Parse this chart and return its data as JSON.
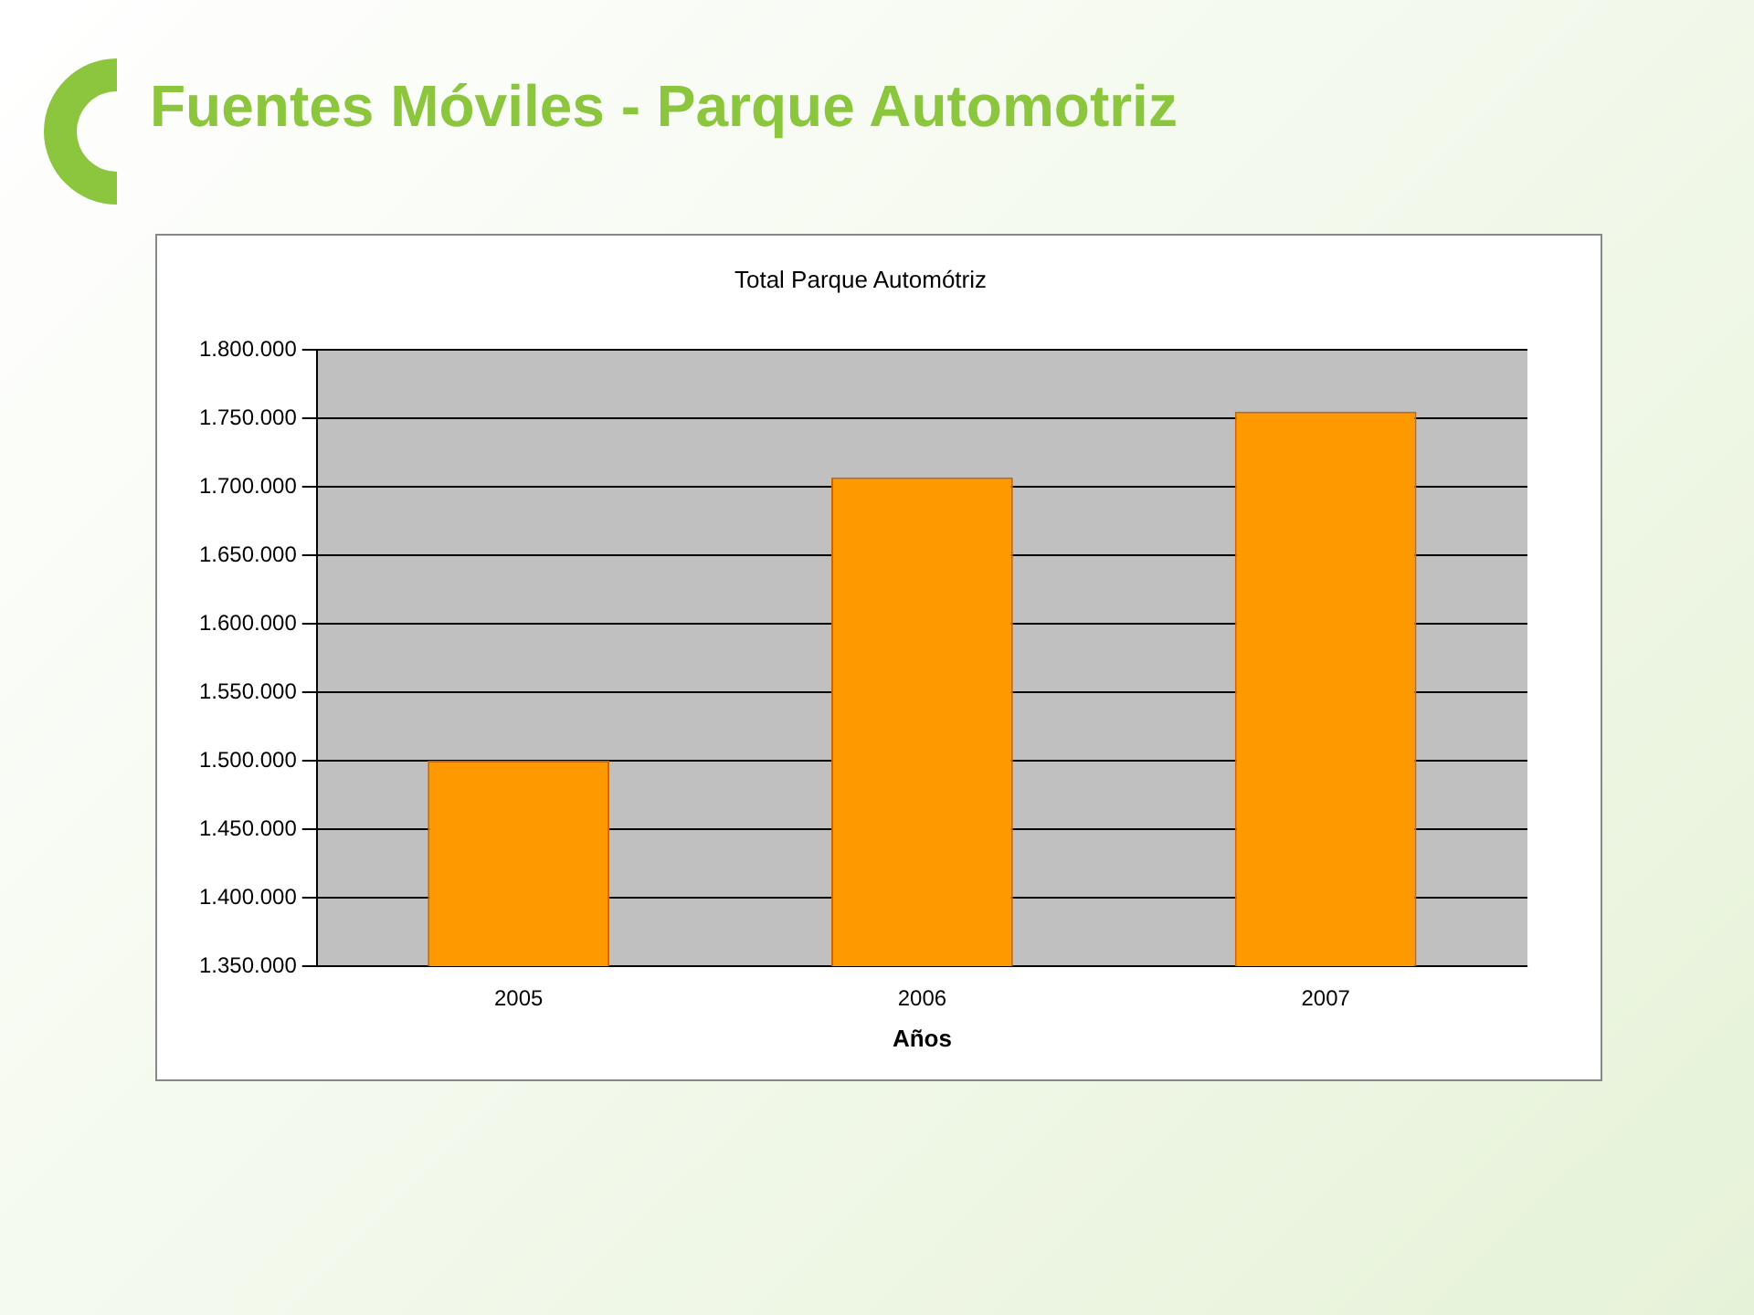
{
  "chart_data": {
    "type": "bar",
    "title": "Fuentes Móviles - Parque Automotriz",
    "subtitle": "Total Parque Automótriz",
    "xlabel": "Años",
    "categories": [
      "2005",
      "2006",
      "2007"
    ],
    "values": [
      1500000,
      1707000,
      1755000
    ],
    "color": "#ff9900",
    "ylim": [
      1350000,
      1800000
    ],
    "yticks": [
      {
        "value": 1350000,
        "label": "1.350.000"
      },
      {
        "value": 1400000,
        "label": "1.400.000"
      },
      {
        "value": 1450000,
        "label": "1.450.000"
      },
      {
        "value": 1500000,
        "label": "1.500.000"
      },
      {
        "value": 1550000,
        "label": "1.550.000"
      },
      {
        "value": 1600000,
        "label": "1.600.000"
      },
      {
        "value": 1650000,
        "label": "1.650.000"
      },
      {
        "value": 1700000,
        "label": "1.700.000"
      },
      {
        "value": 1750000,
        "label": "1.750.000"
      },
      {
        "value": 1800000,
        "label": "1.800.000"
      }
    ],
    "grid": "y"
  }
}
